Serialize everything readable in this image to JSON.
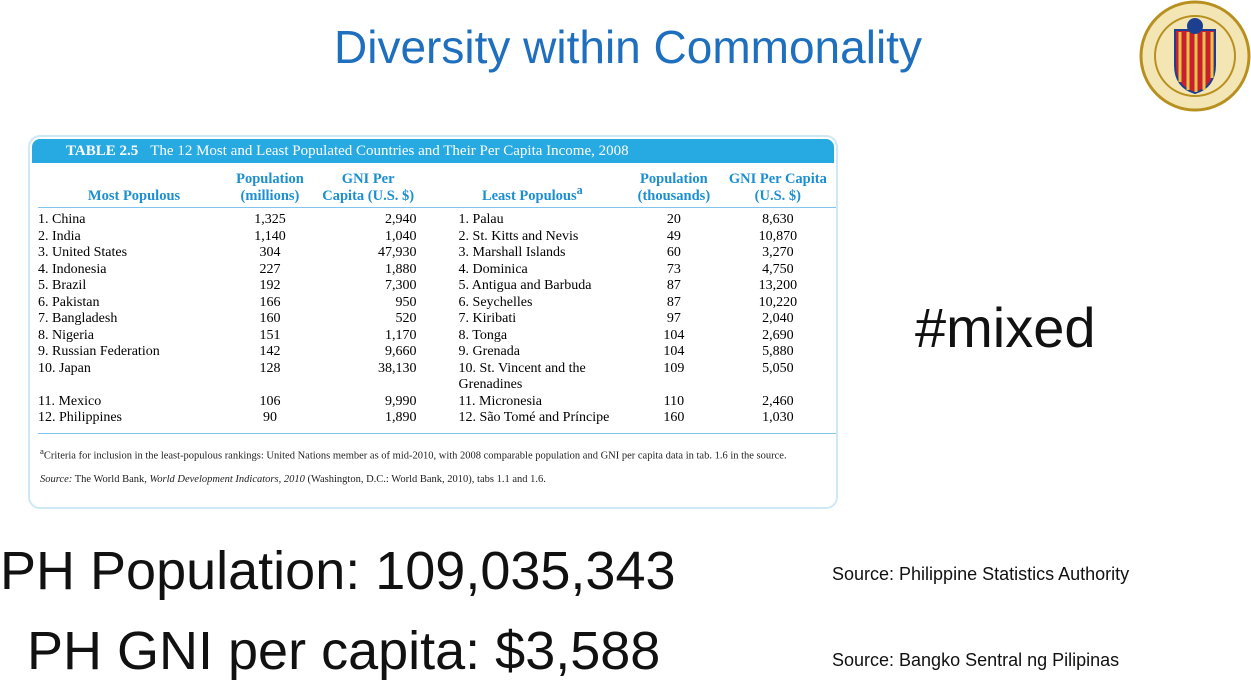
{
  "title": "Diversity within Commonality",
  "table": {
    "label": "TABLE 2.5",
    "caption": "The 12 Most and Least Populated Countries and Their Per Capita Income, 2008",
    "headers": [
      {
        "lines": [
          "Most Populous"
        ]
      },
      {
        "lines": [
          "Population",
          "(millions)"
        ]
      },
      {
        "lines": [
          "GNI Per",
          "Capita (U.S. $)"
        ]
      },
      {
        "lines": [
          "Least Populous"
        ],
        "note": "a"
      },
      {
        "lines": [
          "Population",
          "(thousands)"
        ]
      },
      {
        "lines": [
          "GNI Per Capita",
          "(U.S. $)"
        ]
      }
    ],
    "rows": [
      [
        "1. China",
        "1,325",
        "2,940",
        "1. Palau",
        "20",
        "8,630"
      ],
      [
        "2. India",
        "1,140",
        "1,040",
        "2. St. Kitts and Nevis",
        "49",
        "10,870"
      ],
      [
        "3. United States",
        "304",
        "47,930",
        "3. Marshall Islands",
        "60",
        "3,270"
      ],
      [
        "4. Indonesia",
        "227",
        "1,880",
        "4. Dominica",
        "73",
        "4,750"
      ],
      [
        "5. Brazil",
        "192",
        "7,300",
        "5. Antigua and Barbuda",
        "87",
        "13,200"
      ],
      [
        "6. Pakistan",
        "166",
        "950",
        "6. Seychelles",
        "87",
        "10,220"
      ],
      [
        "7. Bangladesh",
        "160",
        "520",
        "7. Kiribati",
        "97",
        "2,040"
      ],
      [
        "8. Nigeria",
        "151",
        "1,170",
        "8. Tonga",
        "104",
        "2,690"
      ],
      [
        "9. Russian Federation",
        "142",
        "9,660",
        "9. Grenada",
        "104",
        "5,880"
      ],
      [
        "10. Japan",
        "128",
        "38,130",
        "10. St. Vincent and the Grenadines",
        "109",
        "5,050"
      ],
      [
        "11. Mexico",
        "106",
        "9,990",
        "11. Micronesia",
        "110",
        "2,460"
      ],
      [
        "12. Philippines",
        "90",
        "1,890",
        "12. São Tomé and Príncipe",
        "160",
        "1,030"
      ]
    ],
    "footnote": {
      "mark": "a",
      "text": "Criteria for inclusion in the least-populous rankings: United Nations member as of mid-2010, with 2008 comparable population and GNI per capita data in tab. 1.6 in the source."
    },
    "source": {
      "label": "Source:",
      "before": " The World Bank, ",
      "work": "World Development Indicators, 2010",
      "after": " (Washington, D.C.: World Bank, 2010), tabs 1.1 and 1.6."
    }
  },
  "hashtag": "#mixed",
  "stats": [
    {
      "text": "PH Population: 109,035,343",
      "source": "Source: Philippine Statistics Authority"
    },
    {
      "text": "PH GNI per capita: $3,588",
      "source": "Source: Bangko Sentral ng Pilipinas"
    }
  ]
}
